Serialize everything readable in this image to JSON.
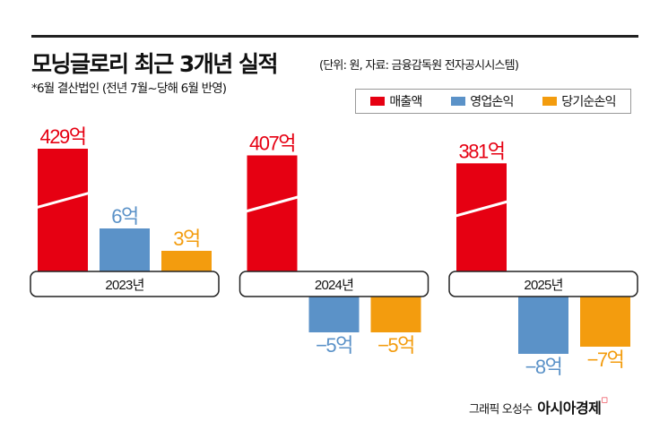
{
  "header": {
    "title": "모닝글로리 최근 3개년 실적",
    "title_note": "(단위: 원, 자료: 금융감독원 전자공시시스템)",
    "subtitle": "*6월 결산법인 (전년 7월~당해 6월 반영)"
  },
  "credit": {
    "label": "그래픽 오성수",
    "brand": "아시아경제",
    "brand_mark": "ㅁ"
  },
  "chart_data": {
    "type": "bar",
    "title": "모닝글로리 최근 3개년 실적",
    "categories": [
      "2023년",
      "2024년",
      "2025년"
    ],
    "unit": "억",
    "broken_axis_series": "매출액",
    "legend_position": "top-right",
    "grid": false,
    "series": [
      {
        "name": "매출액",
        "color": "#e60012",
        "values": [
          429,
          407,
          381
        ],
        "labels": [
          "429억",
          "407억",
          "381억"
        ]
      },
      {
        "name": "영업손익",
        "color": "#5b92c8",
        "values": [
          6,
          -5,
          -8
        ],
        "labels": [
          "6억",
          "−5억",
          "−8억"
        ]
      },
      {
        "name": "당기순손익",
        "color": "#f39c0e",
        "values": [
          3,
          -5,
          -7
        ],
        "labels": [
          "3억",
          "−5억",
          "−7억"
        ]
      }
    ]
  }
}
